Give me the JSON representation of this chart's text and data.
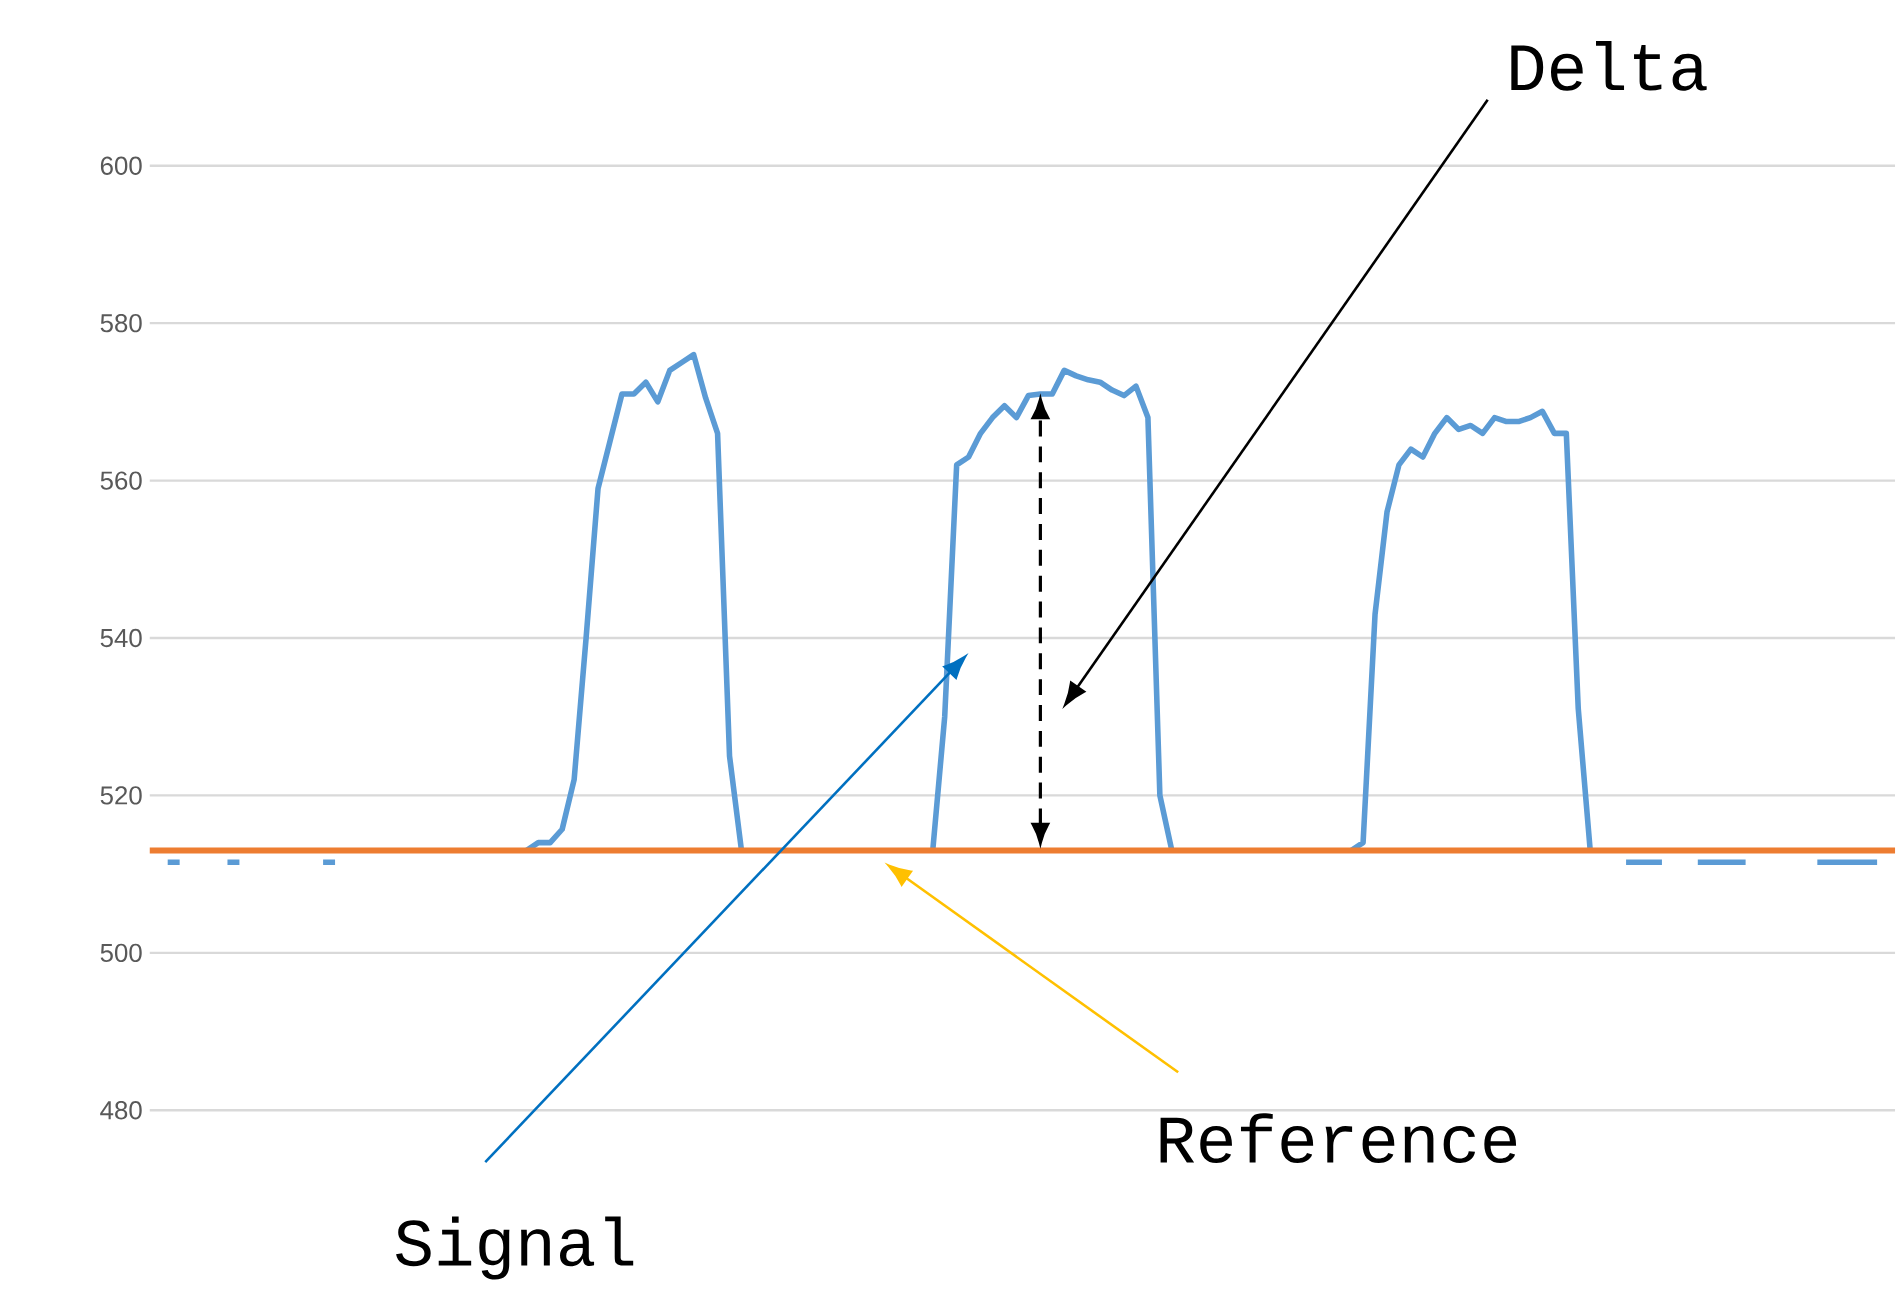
{
  "chart_data": {
    "type": "line",
    "categories": [
      null,
      null,
      null,
      null,
      null,
      null,
      null,
      null,
      null,
      null,
      null,
      null,
      null,
      null,
      null,
      null,
      null,
      null,
      null,
      null,
      null,
      null,
      null,
      null,
      null,
      null,
      null,
      null,
      null,
      null,
      null,
      null,
      null,
      null,
      null,
      null,
      null,
      null,
      null,
      null,
      null,
      null,
      null,
      null,
      null,
      null,
      null,
      null,
      null,
      null,
      null,
      null,
      null,
      null,
      null,
      null,
      null,
      null,
      null,
      null,
      null,
      null,
      null,
      null,
      null,
      null,
      null,
      null,
      null,
      null,
      null,
      null,
      null,
      null,
      null,
      null,
      null,
      null,
      null,
      null,
      null,
      null,
      null,
      null,
      null,
      null,
      null,
      null,
      null,
      null,
      null,
      null,
      null,
      null,
      null,
      null,
      null,
      null,
      null,
      null,
      null,
      null,
      null,
      null,
      null,
      null,
      null,
      null,
      null,
      null,
      null,
      null,
      null,
      null,
      null,
      null,
      null,
      null,
      null,
      null,
      null,
      null,
      null,
      null,
      null,
      null,
      null,
      null,
      null,
      null,
      null,
      null,
      null,
      null,
      null,
      null,
      null,
      null,
      null,
      null,
      null,
      null,
      null,
      null,
      null,
      null
    ],
    "series": [
      {
        "color": "#5b9bd5",
        "values": [
          null,
          511.5,
          511.5,
          null,
          null,
          null,
          511.5,
          511.5,
          null,
          null,
          null,
          null,
          null,
          null,
          511.5,
          511.5,
          null,
          null,
          null,
          null,
          null,
          null,
          null,
          null,
          null,
          null,
          null,
          null,
          null,
          null,
          null,
          513,
          514,
          514,
          515.7,
          522,
          540,
          559,
          565,
          571,
          571,
          572.5,
          570,
          574,
          575,
          576,
          570.5,
          566,
          525,
          513,
          null,
          null,
          null,
          null,
          null,
          null,
          null,
          null,
          null,
          null,
          null,
          null,
          null,
          null,
          null,
          513,
          530,
          562,
          563,
          566,
          568,
          569.5,
          568,
          570.8,
          571,
          571,
          574,
          573.3,
          572.8,
          572.5,
          571.5,
          570.8,
          572,
          568,
          520,
          513,
          null,
          null,
          null,
          null,
          null,
          null,
          null,
          null,
          null,
          null,
          null,
          null,
          null,
          null,
          513,
          514,
          543,
          556,
          562,
          564,
          563,
          566,
          568,
          566.5,
          567,
          566,
          568,
          567.5,
          567.5,
          568,
          568.8,
          566,
          566,
          531,
          513,
          null,
          null,
          511.5,
          511.5,
          511.5,
          511.5,
          null,
          null,
          511.5,
          511.5,
          511.5,
          511.5,
          511.5,
          null,
          null,
          null,
          null,
          null,
          511.5,
          511.5,
          511.5,
          511.5,
          511.5,
          511.5,
          null
        ]
      }
    ],
    "ref_lines": [
      {
        "axis": "y",
        "value": 513,
        "color": "#ed7d31"
      }
    ],
    "annotations": [
      "Delta",
      "Signal",
      "Reference"
    ],
    "ylim": [
      480,
      600
    ],
    "yticks": [
      480,
      500,
      520,
      540,
      560,
      580,
      600
    ],
    "grid": "y",
    "tick_labels": "y"
  }
}
